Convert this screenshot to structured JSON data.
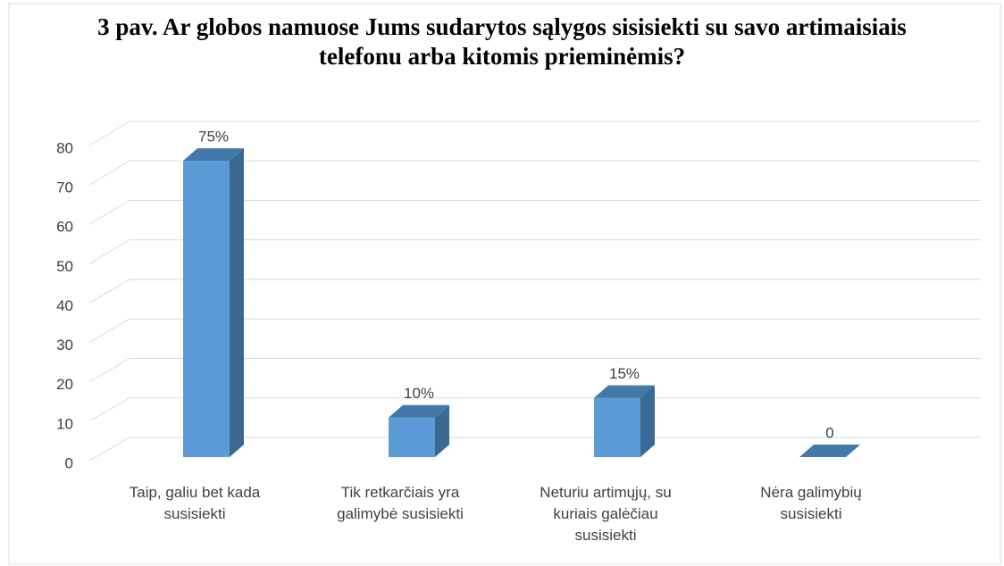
{
  "chart_data": {
    "type": "bar3d",
    "title": "3 pav. Ar globos namuose Jums sudarytos sąlygos sisisiekti su savo artimaisiais telefonu arba kitomis prieminėmis?",
    "categories": [
      "Taip, galiu bet kada susisiekti",
      "Tik retkarčiais yra galimybė susisiekti",
      "Neturiu artimųjų, su kuriais galėčiau susisiekti",
      "Nėra galimybių susisiekti"
    ],
    "values": [
      75,
      10,
      15,
      0
    ],
    "value_labels": [
      "75%",
      "10%",
      "15%",
      "0"
    ],
    "color": "#5b9bd5",
    "ylim": [
      0,
      80
    ],
    "yticks": [
      0,
      10,
      20,
      30,
      40,
      50,
      60,
      70,
      80
    ],
    "grid": true
  }
}
